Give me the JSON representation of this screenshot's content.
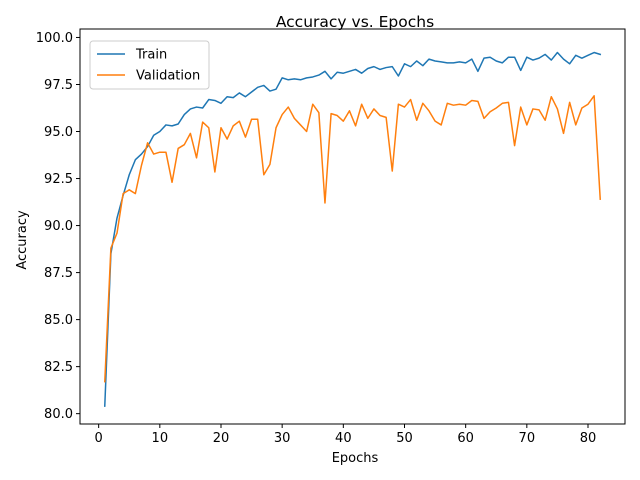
{
  "chart_data": {
    "type": "line",
    "title": "Accuracy vs. Epochs",
    "xlabel": "Epochs",
    "ylabel": "Accuracy",
    "xlim": [
      -3.05,
      86.05
    ],
    "ylim": [
      79.45,
      100.45
    ],
    "xticks": [
      0,
      10,
      20,
      30,
      40,
      50,
      60,
      70,
      80
    ],
    "yticks": [
      80.0,
      82.5,
      85.0,
      87.5,
      90.0,
      92.5,
      95.0,
      97.5,
      100.0
    ],
    "xtick_labels": [
      "0",
      "10",
      "20",
      "30",
      "40",
      "50",
      "60",
      "70",
      "80"
    ],
    "ytick_labels": [
      "80.0",
      "82.5",
      "85.0",
      "87.5",
      "90.0",
      "92.5",
      "95.0",
      "97.5",
      "100.0"
    ],
    "grid": false,
    "legend": "top-left",
    "x": [
      1,
      2,
      3,
      4,
      5,
      6,
      7,
      8,
      9,
      10,
      11,
      12,
      13,
      14,
      15,
      16,
      17,
      18,
      19,
      20,
      21,
      22,
      23,
      24,
      25,
      26,
      27,
      28,
      29,
      30,
      31,
      32,
      33,
      34,
      35,
      36,
      37,
      38,
      39,
      40,
      41,
      42,
      43,
      44,
      45,
      46,
      47,
      48,
      49,
      50,
      51,
      52,
      53,
      54,
      55,
      56,
      57,
      58,
      59,
      60,
      61,
      62,
      63,
      64,
      65,
      66,
      67,
      68,
      69,
      70,
      71,
      72,
      73,
      74,
      75,
      76,
      77,
      78,
      79,
      80,
      81,
      82
    ],
    "series": [
      {
        "name": "Train",
        "color": "#1f77b4",
        "values": [
          80.4,
          88.5,
          90.4,
          91.6,
          92.7,
          93.5,
          93.8,
          94.2,
          94.8,
          95.0,
          95.35,
          95.3,
          95.4,
          95.9,
          96.2,
          96.3,
          96.25,
          96.7,
          96.65,
          96.5,
          96.85,
          96.8,
          97.05,
          96.85,
          97.1,
          97.35,
          97.45,
          97.15,
          97.25,
          97.85,
          97.75,
          97.8,
          97.75,
          97.85,
          97.9,
          98.0,
          98.2,
          97.8,
          98.15,
          98.1,
          98.2,
          98.3,
          98.1,
          98.35,
          98.45,
          98.3,
          98.4,
          98.45,
          97.95,
          98.6,
          98.45,
          98.75,
          98.5,
          98.85,
          98.75,
          98.7,
          98.65,
          98.65,
          98.7,
          98.65,
          98.85,
          98.2,
          98.9,
          98.95,
          98.75,
          98.65,
          98.95,
          98.95,
          98.25,
          98.95,
          98.8,
          98.9,
          99.1,
          98.8,
          99.2,
          98.85,
          98.6,
          99.05,
          98.9,
          99.05,
          99.2,
          99.1
        ]
      },
      {
        "name": "Validation",
        "color": "#ff7f0e",
        "values": [
          81.7,
          88.8,
          89.6,
          91.7,
          91.9,
          91.7,
          93.2,
          94.4,
          93.8,
          93.9,
          93.9,
          92.3,
          94.1,
          94.3,
          94.9,
          93.6,
          95.5,
          95.2,
          92.85,
          95.2,
          94.6,
          95.3,
          95.55,
          94.7,
          95.65,
          95.65,
          92.7,
          93.25,
          95.2,
          95.9,
          96.3,
          95.7,
          95.35,
          95.0,
          96.45,
          96.0,
          91.2,
          95.95,
          95.85,
          95.55,
          96.1,
          95.3,
          96.45,
          95.7,
          96.2,
          95.85,
          95.75,
          92.9,
          96.45,
          96.3,
          96.7,
          95.6,
          96.5,
          96.1,
          95.55,
          95.35,
          96.5,
          96.4,
          96.45,
          96.4,
          96.65,
          96.6,
          95.7,
          96.05,
          96.25,
          96.5,
          96.55,
          94.25,
          96.3,
          95.35,
          96.2,
          96.15,
          95.6,
          96.85,
          96.2,
          94.9,
          96.55,
          95.35,
          96.25,
          96.45,
          96.9,
          91.4
        ]
      }
    ]
  }
}
